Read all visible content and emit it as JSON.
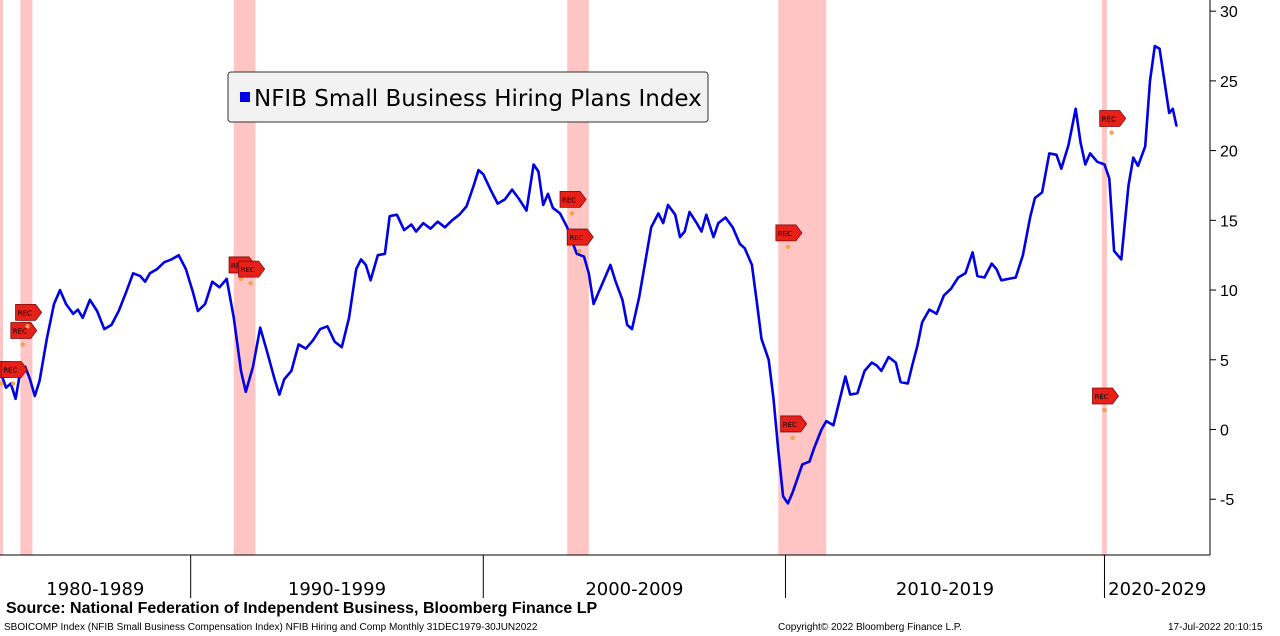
{
  "chart_data": {
    "type": "line",
    "series": [
      {
        "name": "NFIB Small Business Hiring Plans Index",
        "color": "#0000e6",
        "points": [
          [
            1979.9,
            4
          ],
          [
            1980.1,
            3
          ],
          [
            1980.3,
            3.3
          ],
          [
            1980.5,
            2.2
          ],
          [
            1980.7,
            4.2
          ],
          [
            1980.9,
            4.5
          ],
          [
            1981.1,
            3.6
          ],
          [
            1981.3,
            2.4
          ],
          [
            1981.5,
            3.5
          ],
          [
            1981.8,
            6.5
          ],
          [
            1982.1,
            9
          ],
          [
            1982.35,
            10
          ],
          [
            1982.6,
            9
          ],
          [
            1982.9,
            8.3
          ],
          [
            1983.1,
            8.6
          ],
          [
            1983.3,
            8
          ],
          [
            1983.6,
            9.3
          ],
          [
            1983.9,
            8.5
          ],
          [
            1984.2,
            7.2
          ],
          [
            1984.5,
            7.5
          ],
          [
            1984.8,
            8.5
          ],
          [
            1985.1,
            9.8
          ],
          [
            1985.4,
            11.2
          ],
          [
            1985.7,
            11
          ],
          [
            1985.9,
            10.6
          ],
          [
            1986.1,
            11.2
          ],
          [
            1986.4,
            11.5
          ],
          [
            1986.7,
            12
          ],
          [
            1987.0,
            12.2
          ],
          [
            1987.3,
            12.5
          ],
          [
            1987.6,
            11.5
          ],
          [
            1987.9,
            9.8
          ],
          [
            1988.1,
            8.5
          ],
          [
            1988.4,
            9
          ],
          [
            1988.7,
            10.6
          ],
          [
            1989.0,
            10.2
          ],
          [
            1989.3,
            10.8
          ],
          [
            1989.6,
            8
          ],
          [
            1989.9,
            4.2
          ],
          [
            1990.1,
            2.7
          ],
          [
            1990.4,
            4.5
          ],
          [
            1990.7,
            7.3
          ],
          [
            1991.0,
            5.5
          ],
          [
            1991.3,
            3.6
          ],
          [
            1991.5,
            2.5
          ],
          [
            1991.7,
            3.6
          ],
          [
            1992.0,
            4.2
          ],
          [
            1992.3,
            6.1
          ],
          [
            1992.6,
            5.8
          ],
          [
            1992.9,
            6.4
          ],
          [
            1993.2,
            7.2
          ],
          [
            1993.5,
            7.4
          ],
          [
            1993.8,
            6.3
          ],
          [
            1994.1,
            5.9
          ],
          [
            1994.4,
            8
          ],
          [
            1994.7,
            11.5
          ],
          [
            1994.9,
            12.2
          ],
          [
            1995.1,
            11.8
          ],
          [
            1995.3,
            10.7
          ],
          [
            1995.6,
            12.5
          ],
          [
            1995.9,
            12.6
          ],
          [
            1996.1,
            15.3
          ],
          [
            1996.4,
            15.4
          ],
          [
            1996.7,
            14.3
          ],
          [
            1997.0,
            14.7
          ],
          [
            1997.2,
            14.2
          ],
          [
            1997.5,
            14.8
          ],
          [
            1997.8,
            14.4
          ],
          [
            1998.1,
            14.9
          ],
          [
            1998.4,
            14.5
          ],
          [
            1998.7,
            15
          ],
          [
            1999.0,
            15.4
          ],
          [
            1999.3,
            16
          ],
          [
            1999.6,
            17.5
          ],
          [
            1999.8,
            18.6
          ],
          [
            2000.0,
            18.3
          ],
          [
            2000.3,
            17.2
          ],
          [
            2000.6,
            16.2
          ],
          [
            2000.9,
            16.5
          ],
          [
            2001.2,
            17.2
          ],
          [
            2001.5,
            16.5
          ],
          [
            2001.8,
            15.7
          ],
          [
            2002.1,
            19
          ],
          [
            2002.3,
            18.5
          ],
          [
            2002.5,
            16.1
          ],
          [
            2002.7,
            16.9
          ],
          [
            2002.9,
            15.9
          ],
          [
            2003.2,
            15.5
          ],
          [
            2003.5,
            14.5
          ],
          [
            2003.7,
            13.5
          ],
          [
            2003.9,
            12.6
          ],
          [
            2004.2,
            12.4
          ],
          [
            2004.4,
            11.2
          ],
          [
            2004.6,
            9
          ],
          [
            2004.8,
            9.8
          ],
          [
            2005.1,
            11
          ],
          [
            2005.3,
            11.8
          ],
          [
            2005.5,
            10.7
          ],
          [
            2005.8,
            9.3
          ],
          [
            2006.0,
            7.5
          ],
          [
            2006.2,
            7.2
          ],
          [
            2006.5,
            9.5
          ],
          [
            2006.8,
            12.5
          ],
          [
            2007.0,
            14.5
          ],
          [
            2007.3,
            15.5
          ],
          [
            2007.5,
            14.8
          ],
          [
            2007.7,
            16.1
          ],
          [
            2008.0,
            15.4
          ],
          [
            2008.2,
            13.8
          ],
          [
            2008.4,
            14.2
          ],
          [
            2008.6,
            15.6
          ],
          [
            2008.9,
            14.8
          ],
          [
            2009.1,
            14.2
          ],
          [
            2009.3,
            15.4
          ],
          [
            2009.6,
            13.8
          ],
          [
            2009.8,
            14.8
          ],
          [
            2010.1,
            15.2
          ],
          [
            2010.4,
            14.5
          ],
          [
            2010.7,
            13.3
          ],
          [
            2010.9,
            13
          ],
          [
            2011.2,
            11.8
          ],
          [
            2011.4,
            9.2
          ],
          [
            2011.6,
            6.5
          ],
          [
            2011.9,
            5
          ],
          [
            2012.1,
            2.2
          ],
          [
            2012.3,
            -1.5
          ],
          [
            2012.5,
            -4.8
          ],
          [
            2012.7,
            -5.3
          ],
          [
            2012.9,
            -4.5
          ],
          [
            2013.1,
            -3.5
          ],
          [
            2013.3,
            -2.5
          ],
          [
            2013.6,
            -2.3
          ],
          [
            2013.8,
            -1.3
          ],
          [
            2014.1,
            0
          ],
          [
            2014.3,
            0.6
          ],
          [
            2014.6,
            0.3
          ],
          [
            2014.8,
            1.7
          ],
          [
            2015.1,
            3.8
          ],
          [
            2015.3,
            2.5
          ],
          [
            2015.6,
            2.6
          ],
          [
            2015.9,
            4.2
          ],
          [
            2016.2,
            4.8
          ],
          [
            2016.4,
            4.6
          ],
          [
            2016.6,
            4.2
          ],
          [
            2016.9,
            5.2
          ],
          [
            2017.2,
            4.8
          ],
          [
            2017.4,
            3.4
          ],
          [
            2017.7,
            3.3
          ],
          [
            2017.9,
            4.7
          ],
          [
            2018.1,
            6
          ],
          [
            2018.3,
            7.7
          ],
          [
            2018.6,
            8.6
          ],
          [
            2018.9,
            8.3
          ],
          [
            2019.2,
            9.6
          ],
          [
            2019.5,
            10.1
          ],
          [
            2019.8,
            10.9
          ],
          [
            2020.1,
            11.2
          ],
          [
            2020.4,
            12.7
          ],
          [
            2020.6,
            11
          ],
          [
            2020.9,
            10.9
          ],
          [
            2021.2,
            11.9
          ],
          [
            2021.4,
            11.5
          ],
          [
            2021.6,
            10.7
          ],
          [
            2021.9,
            10.8
          ],
          [
            2022.2,
            10.9
          ],
          [
            2022.5,
            12.5
          ],
          [
            2022.8,
            15.2
          ],
          [
            2023.0,
            16.6
          ],
          [
            2023.3,
            17
          ],
          [
            2023.6,
            19.8
          ],
          [
            2023.9,
            19.7
          ],
          [
            2024.1,
            18.7
          ],
          [
            2024.4,
            20.4
          ],
          [
            2024.7,
            23
          ],
          [
            2024.9,
            20.6
          ],
          [
            2025.1,
            19
          ],
          [
            2025.3,
            19.8
          ],
          [
            2025.6,
            19.2
          ],
          [
            2025.9,
            19
          ],
          [
            2026.1,
            18
          ],
          [
            2026.3,
            12.8
          ],
          [
            2026.6,
            12.2
          ],
          [
            2026.9,
            17.5
          ],
          [
            2027.1,
            19.5
          ],
          [
            2027.3,
            18.9
          ],
          [
            2027.6,
            20.3
          ],
          [
            2027.8,
            25
          ],
          [
            2028.0,
            27.5
          ],
          [
            2028.2,
            27.3
          ],
          [
            2028.4,
            25
          ],
          [
            2028.6,
            22.7
          ],
          [
            2028.75,
            23
          ],
          [
            2028.9,
            21.8
          ]
        ]
      }
    ],
    "recessions": [
      [
        1979.85,
        1979.95
      ],
      [
        1980.7,
        1981.2
      ],
      [
        1989.6,
        1990.5
      ],
      [
        2003.5,
        2004.4
      ],
      [
        2012.3,
        2014.3
      ],
      [
        2025.8,
        2026.0
      ]
    ],
    "rec_markers": [
      {
        "x": 1979.9,
        "y": 4.3,
        "label": "REC"
      },
      {
        "x": 1980.4,
        "y": 4.3,
        "label": "REC"
      },
      {
        "x": 1980.8,
        "y": 7.1,
        "label": "REC"
      },
      {
        "x": 1981.0,
        "y": 8.4,
        "label": "REC"
      },
      {
        "x": 1989.9,
        "y": 11.8,
        "label": "REC"
      },
      {
        "x": 1990.3,
        "y": 11.5,
        "label": "REC"
      },
      {
        "x": 2003.7,
        "y": 16.5,
        "label": "REC"
      },
      {
        "x": 2004.0,
        "y": 13.8,
        "label": "REC"
      },
      {
        "x": 2012.7,
        "y": 14.1,
        "label": "REC"
      },
      {
        "x": 2012.9,
        "y": 0.4,
        "label": "REC"
      },
      {
        "x": 2026.2,
        "y": 22.3,
        "label": "REC"
      },
      {
        "x": 2025.9,
        "y": 2.4,
        "label": "REC"
      }
    ],
    "xlim": [
      1979.85,
      2030.3
    ],
    "ylim": [
      -9,
      30.8
    ],
    "y_ticks": [
      30,
      25,
      20,
      15,
      10,
      5,
      0,
      -5
    ],
    "decades": [
      {
        "label": "1980-1989",
        "start": 1979.85,
        "end": 1987.8
      },
      {
        "label": "1990-1999",
        "start": 1987.8,
        "end": 2000.0
      },
      {
        "label": "2000-2009",
        "start": 2000.0,
        "end": 2012.6
      },
      {
        "label": "2010-2019",
        "start": 2012.6,
        "end": 2025.9
      },
      {
        "label": "2020-2029",
        "start": 2025.9,
        "end": 2030.3
      }
    ],
    "legend_position": "top-left",
    "grid": false
  },
  "source_text": "Source: National Federation of Independent Business, Bloomberg Finance LP",
  "footer": {
    "left": "SBOICOMP Index (NFIB Small Business Compensation Index) NFIB Hiring and Comp  Monthly 31DEC1979-30JUN2022",
    "middle": "Copyright© 2022 Bloomberg Finance L.P.",
    "right": "17-Jul-2022 20:10:15"
  }
}
